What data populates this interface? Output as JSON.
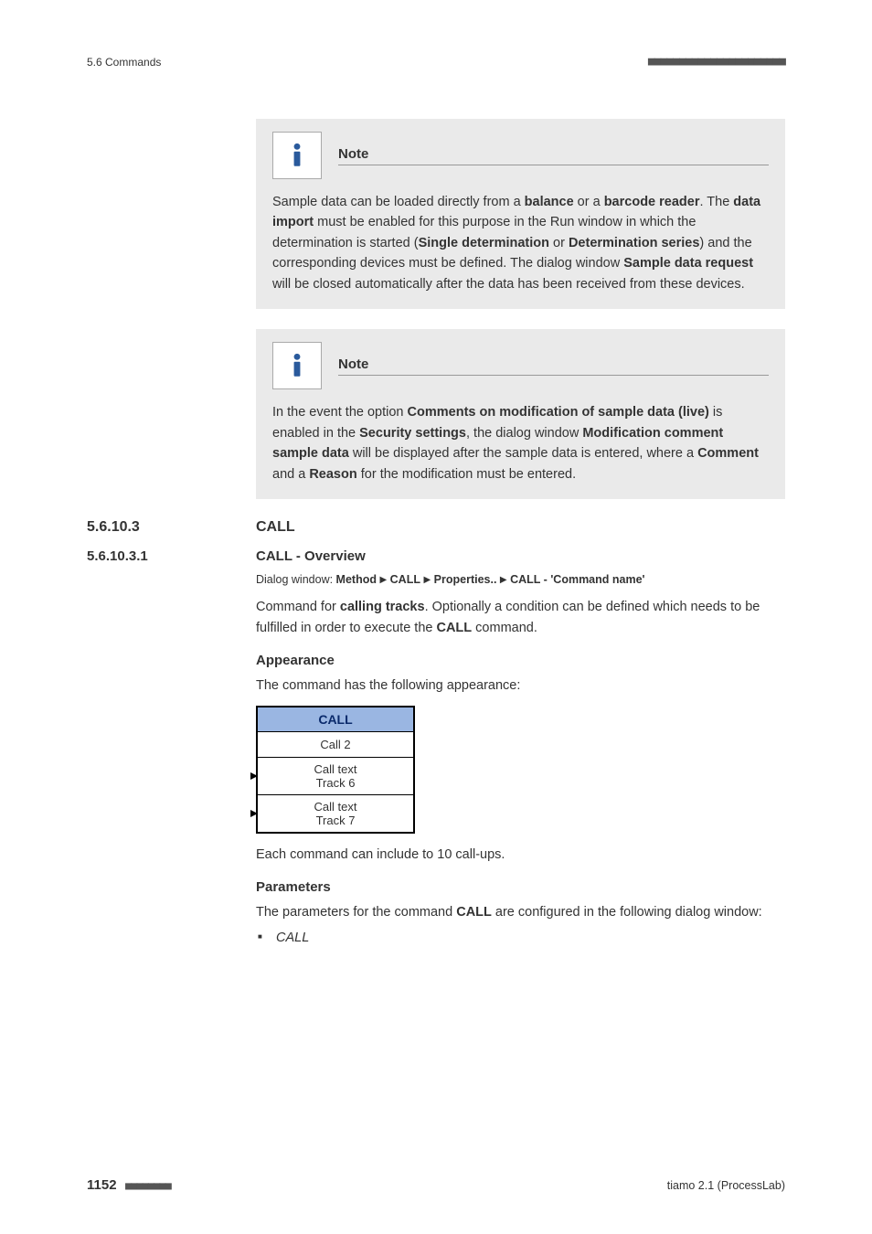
{
  "header": {
    "left": "5.6 Commands",
    "dashes": "■■■■■■■■■■■■■■■■■■■■■■"
  },
  "note1": {
    "title": "Note",
    "body_parts": [
      {
        "t": "Sample data can be loaded directly from a "
      },
      {
        "t": "balance",
        "b": true
      },
      {
        "t": " or a "
      },
      {
        "t": "barcode reader",
        "b": true
      },
      {
        "t": ". The "
      },
      {
        "t": "data import",
        "b": true
      },
      {
        "t": " must be enabled for this purpose in the Run window in which the determination is started ("
      },
      {
        "t": "Single determination",
        "b": true
      },
      {
        "t": " or "
      },
      {
        "t": "Determination series",
        "b": true
      },
      {
        "t": ") and the corresponding devices must be defined. The dialog window "
      },
      {
        "t": "Sample data request",
        "b": true
      },
      {
        "t": " will be closed automatically after the data has been received from these devices."
      }
    ]
  },
  "note2": {
    "title": "Note",
    "body_parts": [
      {
        "t": "In the event the option "
      },
      {
        "t": "Comments on modification of sample data (live)",
        "b": true
      },
      {
        "t": " is enabled in the "
      },
      {
        "t": "Security settings",
        "b": true
      },
      {
        "t": ", the dialog window "
      },
      {
        "t": "Modification comment sample data",
        "b": true
      },
      {
        "t": " will be displayed after the sample data is entered, where a "
      },
      {
        "t": "Comment",
        "b": true
      },
      {
        "t": " and a "
      },
      {
        "t": "Reason",
        "b": true
      },
      {
        "t": " for the modification must be entered."
      }
    ]
  },
  "sec1": {
    "num": "5.6.10.3",
    "title": "CALL"
  },
  "sec2": {
    "num": "5.6.10.3.1",
    "title": "CALL - Overview"
  },
  "dialog_path": {
    "label": "Dialog window: ",
    "p1": "Method",
    "p2": "CALL",
    "p3": "Properties..",
    "p4": "CALL - 'Command name'"
  },
  "intro_parts": [
    {
      "t": "Command for "
    },
    {
      "t": "calling tracks",
      "b": true
    },
    {
      "t": ". Optionally a condition can be defined which needs to be fulfilled in order to execute the "
    },
    {
      "t": "CALL",
      "b": true
    },
    {
      "t": " command."
    }
  ],
  "appearance": {
    "heading": "Appearance",
    "lead": "The command has the following appearance:",
    "fig": {
      "head": "CALL",
      "row1": "Call 2",
      "sub1a": "Call text",
      "sub1b": "Track 6",
      "sub2a": "Call text",
      "sub2b": "Track 7"
    },
    "after": "Each command can include to 10 call-ups."
  },
  "parameters": {
    "heading": "Parameters",
    "lead_parts": [
      {
        "t": "The parameters for the command "
      },
      {
        "t": "CALL",
        "b": true
      },
      {
        "t": " are configured in the following dialog window:"
      }
    ],
    "bullet": "CALL"
  },
  "footer": {
    "page": "1152",
    "dashes": "■■■■■■■■",
    "right": "tiamo 2.1 (ProcessLab)"
  }
}
